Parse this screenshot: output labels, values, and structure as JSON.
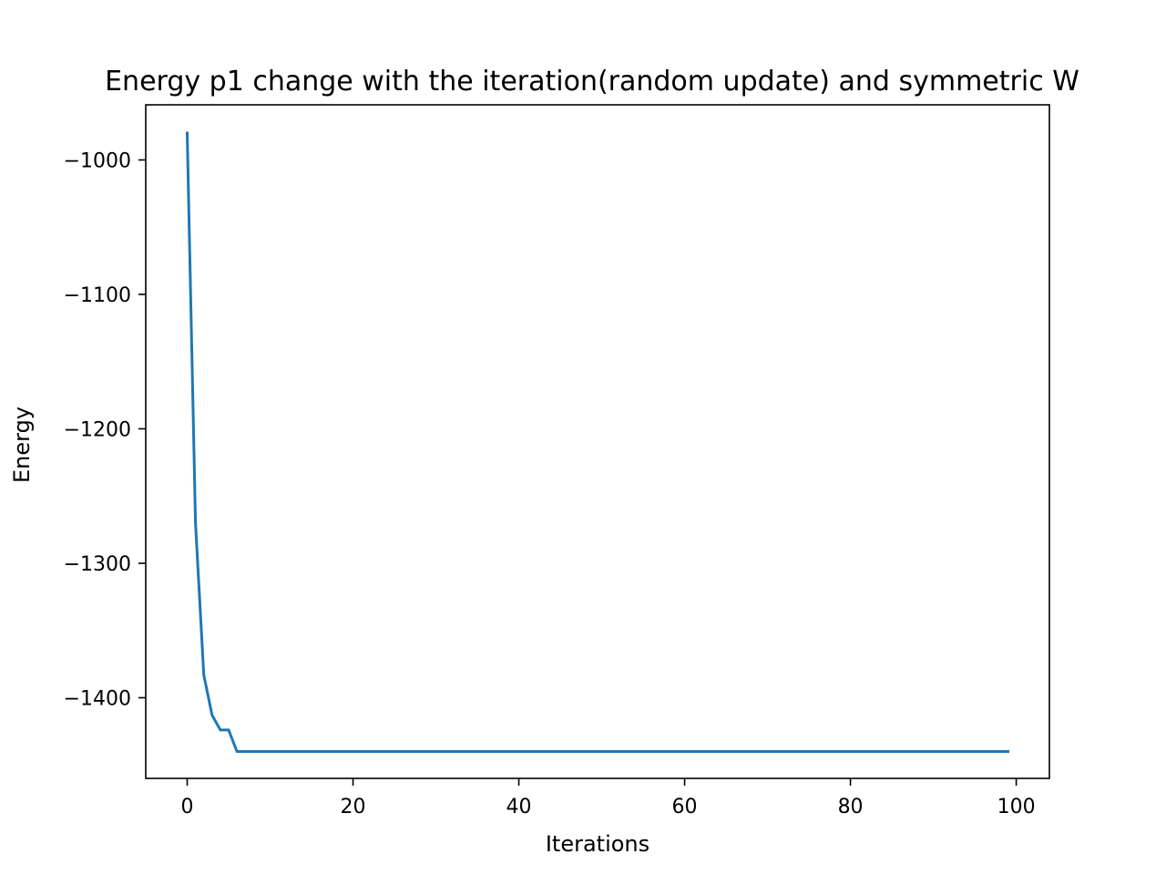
{
  "chart_data": {
    "type": "line",
    "title": "Energy p1 change with the iteration(random update) and symmetric W",
    "xlabel": "Iterations",
    "ylabel": "Energy",
    "xlim": [
      -5,
      104
    ],
    "ylim": [
      -1460,
      -959
    ],
    "grid": false,
    "x_ticks": [
      0,
      20,
      40,
      60,
      80,
      100
    ],
    "y_ticks": [
      -1400,
      -1300,
      -1200,
      -1100,
      -1000
    ],
    "x_tick_labels": [
      "0",
      "20",
      "40",
      "60",
      "80",
      "100"
    ],
    "y_tick_labels": [
      "−1400",
      "−1300",
      "−1200",
      "−1100",
      "−1000"
    ],
    "series": [
      {
        "color": "#1f77b4",
        "x": [
          0,
          1,
          2,
          3,
          4,
          5,
          6,
          7,
          99
        ],
        "y": [
          -980,
          -1270,
          -1383,
          -1413,
          -1424,
          -1424,
          -1440,
          -1440,
          -1440
        ]
      }
    ]
  }
}
